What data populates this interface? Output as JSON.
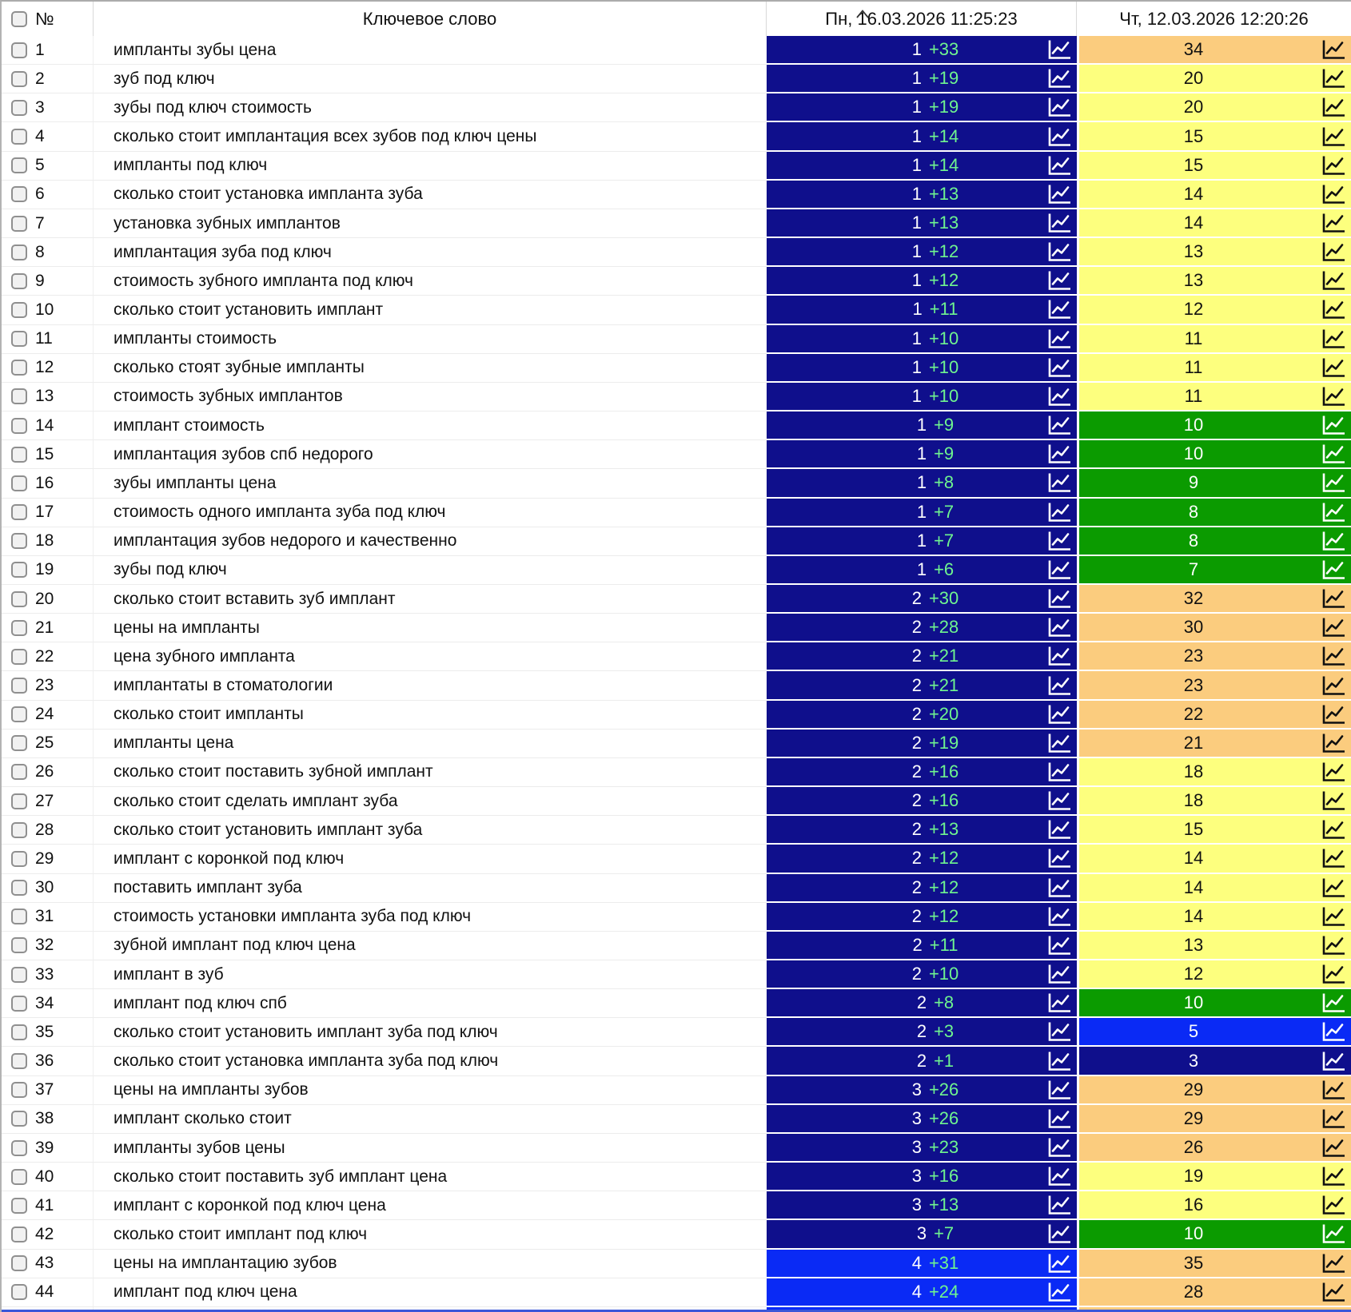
{
  "header": {
    "select_all": "checkbox",
    "number_label": "№",
    "keyword_label": "Ключевое слово",
    "date_col_1": "Пн, 16.03.2026 11:25:23",
    "date_col_2": "Чт, 12.03.2026 12:20:26",
    "sort_indicator": "caret-up-icon on date_col_1"
  },
  "icons": {
    "cell_chart": "line-chart-icon",
    "sort": "caret-up-icon"
  },
  "colors": {
    "navy": "#0F0F8C",
    "blue": "#0A2AF5",
    "green": "#0B9B00",
    "yellow": "#FDFF7E",
    "orange": "#FBCC7E",
    "change_text": "#6FF58F",
    "bottom_edge": "#3A57D9"
  },
  "color_legend": {
    "navy": "positions 1-3",
    "blue": "positions 4-5",
    "green": "positions 6-10",
    "yellow": "positions 11-20",
    "orange": "positions 21+"
  },
  "rows": [
    {
      "n": "1",
      "keyword": "импланты зубы цена",
      "col1": {
        "pos": "1",
        "change": "+33",
        "color": "navy"
      },
      "col2": {
        "value": "34",
        "color": "orange"
      }
    },
    {
      "n": "2",
      "keyword": "зуб под ключ",
      "col1": {
        "pos": "1",
        "change": "+19",
        "color": "navy"
      },
      "col2": {
        "value": "20",
        "color": "yellow"
      }
    },
    {
      "n": "3",
      "keyword": "зубы под ключ стоимость",
      "col1": {
        "pos": "1",
        "change": "+19",
        "color": "navy"
      },
      "col2": {
        "value": "20",
        "color": "yellow"
      }
    },
    {
      "n": "4",
      "keyword": "сколько стоит имплантация всех зубов под ключ цены",
      "col1": {
        "pos": "1",
        "change": "+14",
        "color": "navy"
      },
      "col2": {
        "value": "15",
        "color": "yellow"
      }
    },
    {
      "n": "5",
      "keyword": "импланты под ключ",
      "col1": {
        "pos": "1",
        "change": "+14",
        "color": "navy"
      },
      "col2": {
        "value": "15",
        "color": "yellow"
      }
    },
    {
      "n": "6",
      "keyword": "сколько стоит установка импланта зуба",
      "col1": {
        "pos": "1",
        "change": "+13",
        "color": "navy"
      },
      "col2": {
        "value": "14",
        "color": "yellow"
      }
    },
    {
      "n": "7",
      "keyword": "установка зубных имплантов",
      "col1": {
        "pos": "1",
        "change": "+13",
        "color": "navy"
      },
      "col2": {
        "value": "14",
        "color": "yellow"
      }
    },
    {
      "n": "8",
      "keyword": "имплантация зуба под ключ",
      "col1": {
        "pos": "1",
        "change": "+12",
        "color": "navy"
      },
      "col2": {
        "value": "13",
        "color": "yellow"
      }
    },
    {
      "n": "9",
      "keyword": "стоимость зубного импланта под ключ",
      "col1": {
        "pos": "1",
        "change": "+12",
        "color": "navy"
      },
      "col2": {
        "value": "13",
        "color": "yellow"
      }
    },
    {
      "n": "10",
      "keyword": "сколько стоит установить имплант",
      "col1": {
        "pos": "1",
        "change": "+11",
        "color": "navy"
      },
      "col2": {
        "value": "12",
        "color": "yellow"
      }
    },
    {
      "n": "11",
      "keyword": "импланты стоимость",
      "col1": {
        "pos": "1",
        "change": "+10",
        "color": "navy"
      },
      "col2": {
        "value": "11",
        "color": "yellow"
      }
    },
    {
      "n": "12",
      "keyword": "сколько стоят зубные импланты",
      "col1": {
        "pos": "1",
        "change": "+10",
        "color": "navy"
      },
      "col2": {
        "value": "11",
        "color": "yellow"
      }
    },
    {
      "n": "13",
      "keyword": "стоимость зубных имплантов",
      "col1": {
        "pos": "1",
        "change": "+10",
        "color": "navy"
      },
      "col2": {
        "value": "11",
        "color": "yellow"
      }
    },
    {
      "n": "14",
      "keyword": "имплант стоимость",
      "col1": {
        "pos": "1",
        "change": "+9",
        "color": "navy"
      },
      "col2": {
        "value": "10",
        "color": "green"
      }
    },
    {
      "n": "15",
      "keyword": "имплантация зубов спб недорого",
      "col1": {
        "pos": "1",
        "change": "+9",
        "color": "navy"
      },
      "col2": {
        "value": "10",
        "color": "green"
      }
    },
    {
      "n": "16",
      "keyword": "зубы импланты цена",
      "col1": {
        "pos": "1",
        "change": "+8",
        "color": "navy"
      },
      "col2": {
        "value": "9",
        "color": "green"
      }
    },
    {
      "n": "17",
      "keyword": "стоимость одного импланта зуба под ключ",
      "col1": {
        "pos": "1",
        "change": "+7",
        "color": "navy"
      },
      "col2": {
        "value": "8",
        "color": "green"
      }
    },
    {
      "n": "18",
      "keyword": "имплантация зубов недорого и качественно",
      "col1": {
        "pos": "1",
        "change": "+7",
        "color": "navy"
      },
      "col2": {
        "value": "8",
        "color": "green"
      }
    },
    {
      "n": "19",
      "keyword": "зубы под ключ",
      "col1": {
        "pos": "1",
        "change": "+6",
        "color": "navy"
      },
      "col2": {
        "value": "7",
        "color": "green"
      }
    },
    {
      "n": "20",
      "keyword": "сколько стоит вставить зуб имплант",
      "col1": {
        "pos": "2",
        "change": "+30",
        "color": "navy"
      },
      "col2": {
        "value": "32",
        "color": "orange"
      }
    },
    {
      "n": "21",
      "keyword": "цены на импланты",
      "col1": {
        "pos": "2",
        "change": "+28",
        "color": "navy"
      },
      "col2": {
        "value": "30",
        "color": "orange"
      }
    },
    {
      "n": "22",
      "keyword": "цена зубного импланта",
      "col1": {
        "pos": "2",
        "change": "+21",
        "color": "navy"
      },
      "col2": {
        "value": "23",
        "color": "orange"
      }
    },
    {
      "n": "23",
      "keyword": "имплантаты в стоматологии",
      "col1": {
        "pos": "2",
        "change": "+21",
        "color": "navy"
      },
      "col2": {
        "value": "23",
        "color": "orange"
      }
    },
    {
      "n": "24",
      "keyword": "сколько стоит импланты",
      "col1": {
        "pos": "2",
        "change": "+20",
        "color": "navy"
      },
      "col2": {
        "value": "22",
        "color": "orange"
      }
    },
    {
      "n": "25",
      "keyword": "импланты цена",
      "col1": {
        "pos": "2",
        "change": "+19",
        "color": "navy"
      },
      "col2": {
        "value": "21",
        "color": "orange"
      }
    },
    {
      "n": "26",
      "keyword": "сколько стоит поставить зубной имплант",
      "col1": {
        "pos": "2",
        "change": "+16",
        "color": "navy"
      },
      "col2": {
        "value": "18",
        "color": "yellow"
      }
    },
    {
      "n": "27",
      "keyword": "сколько стоит сделать имплант зуба",
      "col1": {
        "pos": "2",
        "change": "+16",
        "color": "navy"
      },
      "col2": {
        "value": "18",
        "color": "yellow"
      }
    },
    {
      "n": "28",
      "keyword": "сколько стоит установить имплант зуба",
      "col1": {
        "pos": "2",
        "change": "+13",
        "color": "navy"
      },
      "col2": {
        "value": "15",
        "color": "yellow"
      }
    },
    {
      "n": "29",
      "keyword": "имплант с коронкой под ключ",
      "col1": {
        "pos": "2",
        "change": "+12",
        "color": "navy"
      },
      "col2": {
        "value": "14",
        "color": "yellow"
      }
    },
    {
      "n": "30",
      "keyword": "поставить имплант зуба",
      "col1": {
        "pos": "2",
        "change": "+12",
        "color": "navy"
      },
      "col2": {
        "value": "14",
        "color": "yellow"
      }
    },
    {
      "n": "31",
      "keyword": "стоимость установки импланта зуба под ключ",
      "col1": {
        "pos": "2",
        "change": "+12",
        "color": "navy"
      },
      "col2": {
        "value": "14",
        "color": "yellow"
      }
    },
    {
      "n": "32",
      "keyword": "зубной имплант под ключ цена",
      "col1": {
        "pos": "2",
        "change": "+11",
        "color": "navy"
      },
      "col2": {
        "value": "13",
        "color": "yellow"
      }
    },
    {
      "n": "33",
      "keyword": "имплант в зуб",
      "col1": {
        "pos": "2",
        "change": "+10",
        "color": "navy"
      },
      "col2": {
        "value": "12",
        "color": "yellow"
      }
    },
    {
      "n": "34",
      "keyword": "имплант под ключ спб",
      "col1": {
        "pos": "2",
        "change": "+8",
        "color": "navy"
      },
      "col2": {
        "value": "10",
        "color": "green"
      }
    },
    {
      "n": "35",
      "keyword": "сколько стоит установить имплант зуба под ключ",
      "col1": {
        "pos": "2",
        "change": "+3",
        "color": "navy"
      },
      "col2": {
        "value": "5",
        "color": "blue"
      }
    },
    {
      "n": "36",
      "keyword": "сколько стоит установка импланта зуба под ключ",
      "col1": {
        "pos": "2",
        "change": "+1",
        "color": "navy"
      },
      "col2": {
        "value": "3",
        "color": "navy"
      }
    },
    {
      "n": "37",
      "keyword": "цены на импланты зубов",
      "col1": {
        "pos": "3",
        "change": "+26",
        "color": "navy"
      },
      "col2": {
        "value": "29",
        "color": "orange"
      }
    },
    {
      "n": "38",
      "keyword": "имплант сколько стоит",
      "col1": {
        "pos": "3",
        "change": "+26",
        "color": "navy"
      },
      "col2": {
        "value": "29",
        "color": "orange"
      }
    },
    {
      "n": "39",
      "keyword": "импланты зубов цены",
      "col1": {
        "pos": "3",
        "change": "+23",
        "color": "navy"
      },
      "col2": {
        "value": "26",
        "color": "orange"
      }
    },
    {
      "n": "40",
      "keyword": "сколько стоит поставить зуб имплант цена",
      "col1": {
        "pos": "3",
        "change": "+16",
        "color": "navy"
      },
      "col2": {
        "value": "19",
        "color": "yellow"
      }
    },
    {
      "n": "41",
      "keyword": "имплант с коронкой под ключ цена",
      "col1": {
        "pos": "3",
        "change": "+13",
        "color": "navy"
      },
      "col2": {
        "value": "16",
        "color": "yellow"
      }
    },
    {
      "n": "42",
      "keyword": "сколько стоит имплант под ключ",
      "col1": {
        "pos": "3",
        "change": "+7",
        "color": "navy"
      },
      "col2": {
        "value": "10",
        "color": "green"
      }
    },
    {
      "n": "43",
      "keyword": "цены на имплантацию зубов",
      "col1": {
        "pos": "4",
        "change": "+31",
        "color": "blue"
      },
      "col2": {
        "value": "35",
        "color": "orange"
      }
    },
    {
      "n": "44",
      "keyword": "имплант под ключ цена",
      "col1": {
        "pos": "4",
        "change": "+24",
        "color": "blue"
      },
      "col2": {
        "value": "28",
        "color": "orange"
      }
    },
    {
      "n": "",
      "keyword": "",
      "col1": {
        "pos": "",
        "change": "",
        "color": "blue"
      },
      "col2": {
        "value": "",
        "color": "orange"
      },
      "partial": true
    }
  ]
}
